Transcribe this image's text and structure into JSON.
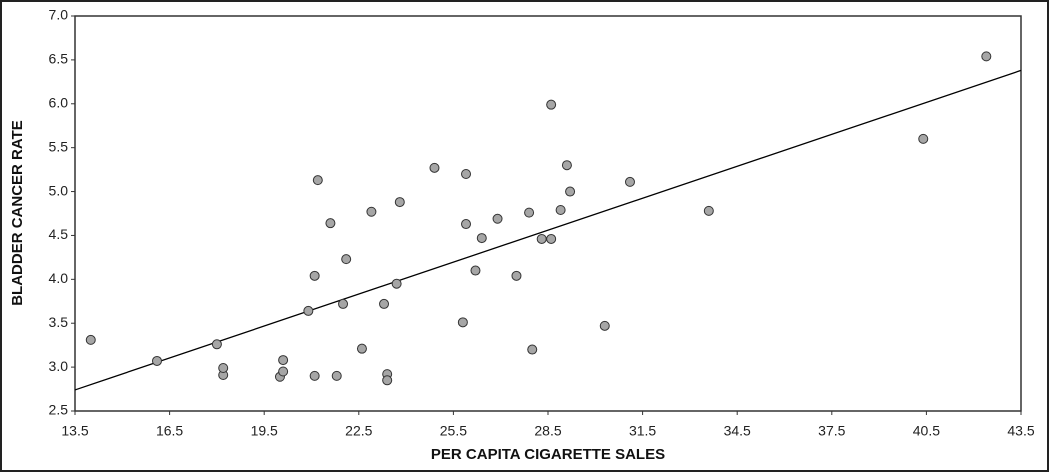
{
  "chart_data": {
    "type": "scatter",
    "x_label": "PER CAPITA CIGARETTE SALES",
    "y_label": "BLADDER CANCER RATE",
    "x": [
      14.0,
      16.1,
      18.0,
      18.2,
      18.2,
      20.0,
      20.1,
      20.1,
      20.9,
      21.1,
      21.1,
      21.2,
      21.6,
      21.8,
      22.0,
      22.1,
      22.6,
      22.9,
      23.3,
      23.4,
      23.4,
      23.7,
      23.8,
      24.9,
      25.8,
      25.9,
      25.9,
      26.2,
      26.4,
      26.9,
      27.5,
      27.9,
      28.0,
      28.3,
      28.6,
      28.6,
      28.9,
      29.1,
      29.2,
      30.3,
      31.1,
      33.6,
      40.4,
      42.4
    ],
    "y": [
      3.31,
      3.07,
      3.26,
      2.91,
      2.99,
      2.89,
      2.95,
      3.08,
      3.64,
      2.9,
      4.04,
      5.13,
      4.64,
      2.9,
      3.72,
      4.23,
      3.21,
      4.77,
      3.72,
      2.92,
      2.85,
      3.95,
      4.88,
      5.27,
      3.51,
      5.2,
      4.63,
      4.1,
      4.47,
      4.69,
      4.04,
      4.76,
      3.2,
      4.46,
      4.46,
      5.99,
      4.79,
      5.3,
      5.0,
      3.47,
      5.11,
      4.78,
      5.6,
      6.54
    ],
    "color": "#a6a6a6",
    "trendline": {
      "x": [
        13.5,
        43.5
      ],
      "y": [
        2.74,
        6.38
      ],
      "color": "#000000"
    },
    "xlim": [
      13.5,
      43.5
    ],
    "xticks": [
      13.5,
      16.5,
      19.5,
      22.5,
      25.5,
      28.5,
      31.5,
      34.5,
      37.5,
      40.5,
      43.5
    ],
    "ylim": [
      2.5,
      7.0
    ],
    "yticks": [
      2.5,
      {
        "value": 3.0,
        "label": "3.0"
      },
      3.5,
      {
        "value": 4.0,
        "label": "4.0"
      },
      4.5,
      {
        "value": 5.0,
        "label": "5.0"
      },
      5.5,
      {
        "value": 6.0,
        "label": "6.0"
      },
      6.5,
      {
        "value": 7.0,
        "label": "7.0"
      }
    ]
  }
}
